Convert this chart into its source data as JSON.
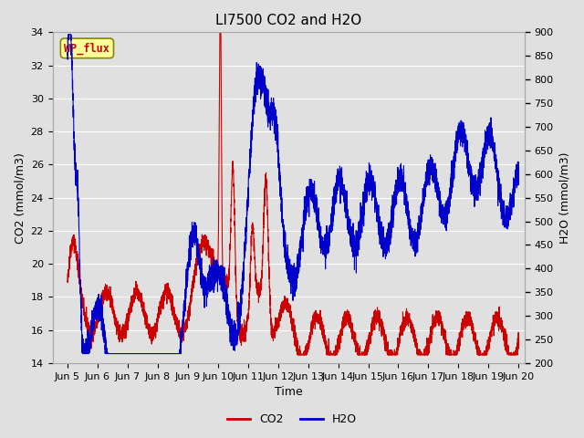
{
  "title": "LI7500 CO2 and H2O",
  "xlabel": "Time",
  "ylabel_left": "CO2 (mmol/m3)",
  "ylabel_right": "H2O (mmol/m3)",
  "xlim": [
    4.5,
    20.2
  ],
  "ylim_left": [
    14,
    34
  ],
  "ylim_right": [
    200,
    900
  ],
  "yticks_left": [
    14,
    16,
    18,
    20,
    22,
    24,
    26,
    28,
    30,
    32,
    34
  ],
  "yticks_right": [
    200,
    250,
    300,
    350,
    400,
    450,
    500,
    550,
    600,
    650,
    700,
    750,
    800,
    850,
    900
  ],
  "xtick_labels": [
    "Jun 5",
    "Jun 6",
    "Jun 7",
    "Jun 8",
    "Jun 9",
    "Jun 10",
    "Jun 11",
    "Jun 12",
    "Jun 13",
    "Jun 14",
    "Jun 15",
    "Jun 16",
    "Jun 17",
    "Jun 18",
    "Jun 19",
    "Jun 20"
  ],
  "xtick_positions": [
    5,
    6,
    7,
    8,
    9,
    10,
    11,
    12,
    13,
    14,
    15,
    16,
    17,
    18,
    19,
    20
  ],
  "co2_color": "#cc0000",
  "h2o_color": "#0000cc",
  "fig_bg_color": "#e0e0e0",
  "plot_bg_color": "#e0e0e0",
  "grid_color": "#ffffff",
  "wp_flux_bg": "#ffff99",
  "wp_flux_border": "#888800",
  "wp_flux_text_color": "#cc0000",
  "legend_co2": "CO2",
  "legend_h2o": "H2O",
  "title_fontsize": 11,
  "axis_label_fontsize": 9,
  "tick_fontsize": 8
}
